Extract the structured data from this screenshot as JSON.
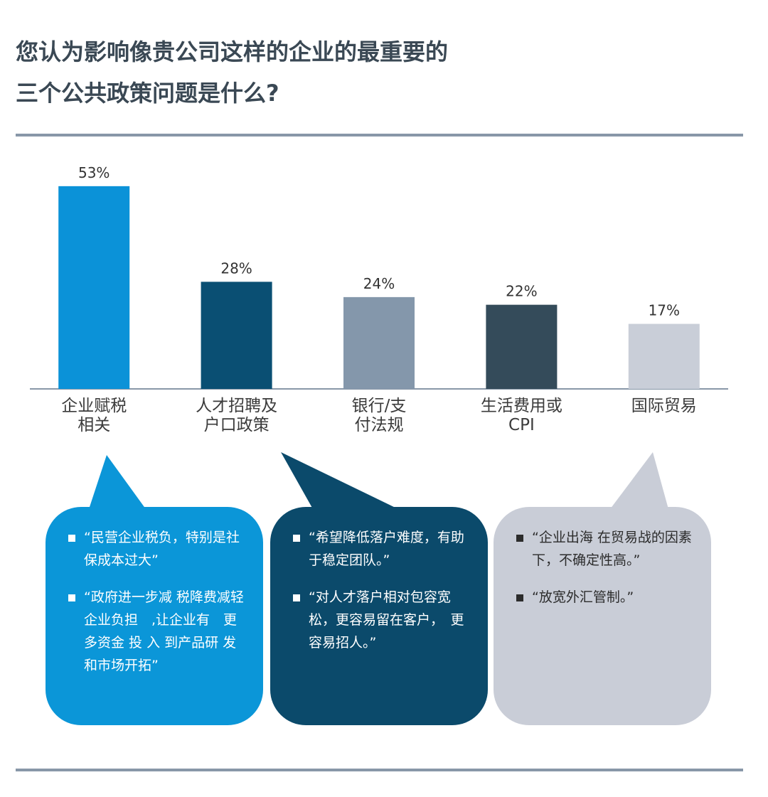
{
  "chart_data": {
    "type": "bar",
    "title": "您认为影响像贵公司这样的企业的最重要的\n三个公共政策问题是什么?",
    "categories": [
      "企业赋税\n相关",
      "人才招聘及\n户口政策",
      "银行/支\n付法规",
      "生活费用或\nCPI",
      "国际贸易"
    ],
    "values": [
      53,
      28,
      24,
      22,
      17
    ],
    "value_labels": [
      "53%",
      "28%",
      "24%",
      "22%",
      "17%"
    ],
    "colors": [
      "#0b92d8",
      "#0a4f73",
      "#8497ab",
      "#344b5a",
      "#c9ced8"
    ],
    "annotations": [
      {
        "color": "#0b96d8",
        "text_color": "#ffffff",
        "items": [
          "“民营企业税负，特别是社保成本过大”",
          "“政府进一步减 税降费减轻企业负担　,让企业有　更 多资金 投 入 到产品研 发和市场开拓”"
        ]
      },
      {
        "color": "#0b4a6b",
        "text_color": "#ffffff",
        "items": [
          "“希望降低落户难度，有助于稳定团队。”",
          "“对人才落户相对包容宽松，更容易留在客户，　更容易招人。”"
        ]
      },
      {
        "color": "#c9cdd7",
        "text_color": "#2c2c2c",
        "items": [
          "“企业出海 在贸易战的因素下，不确定性高。”",
          "“放宽外汇管制。”"
        ]
      }
    ]
  }
}
